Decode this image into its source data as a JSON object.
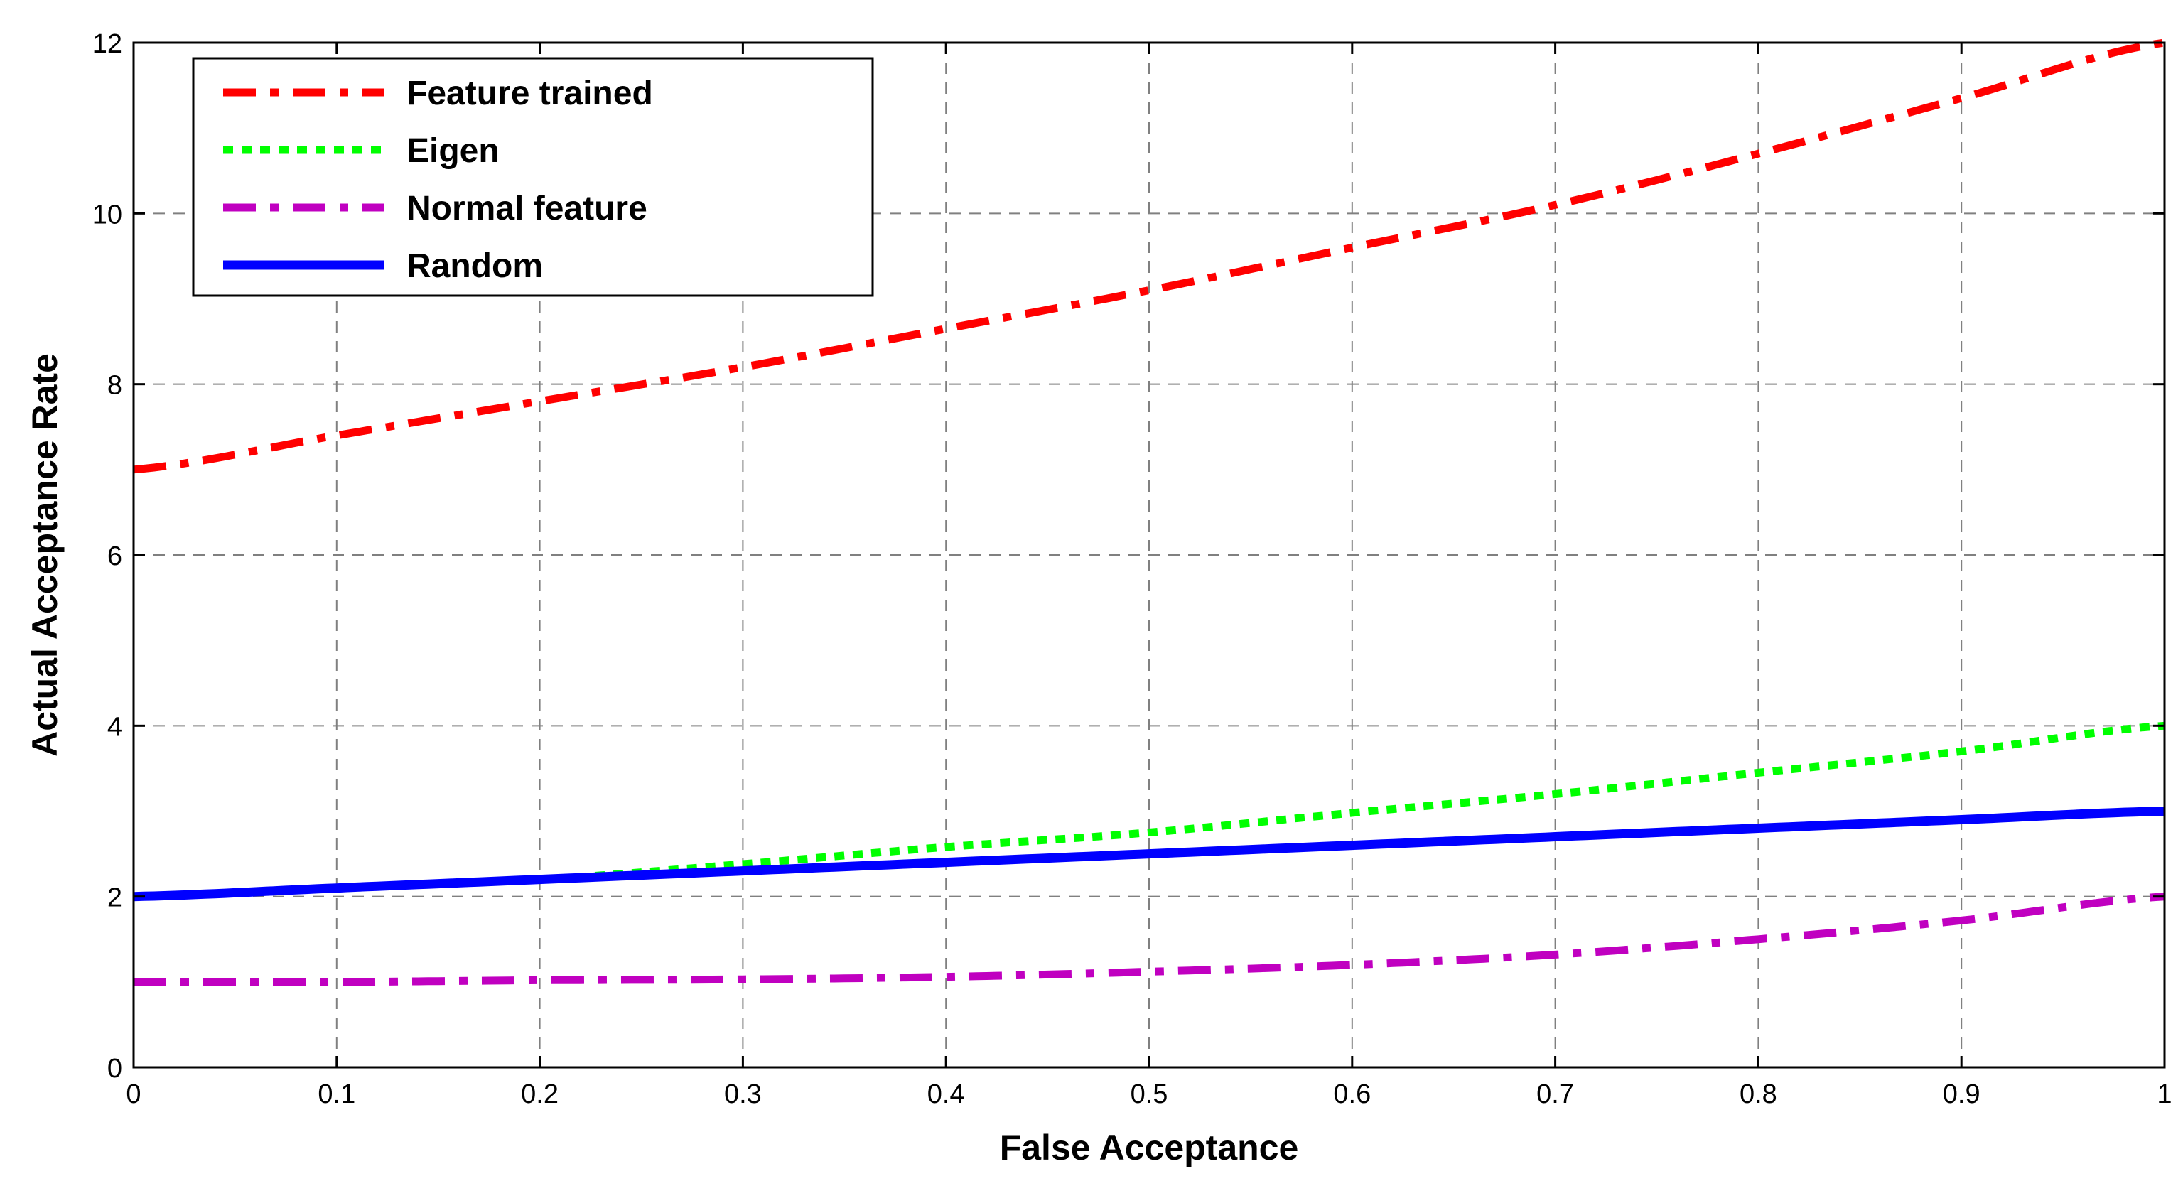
{
  "chart_data": {
    "type": "line",
    "xlabel": "False Acceptance",
    "ylabel": "Actual Acceptance Rate",
    "xlim": [
      0,
      1
    ],
    "ylim": [
      0,
      12
    ],
    "xticks": [
      0,
      0.1,
      0.2,
      0.3,
      0.4,
      0.5,
      0.6,
      0.7,
      0.8,
      0.9,
      1
    ],
    "xtick_labels": [
      "0",
      "0.1",
      "0.2",
      "0.3",
      "0.4",
      "0.5",
      "0.6",
      "0.7",
      "0.8",
      "0.9",
      "1"
    ],
    "yticks": [
      0,
      2,
      4,
      6,
      8,
      10,
      12
    ],
    "ytick_labels": [
      "0",
      "2",
      "4",
      "6",
      "8",
      "10",
      "12"
    ],
    "grid": true,
    "legend_position": "top-left",
    "x": [
      0,
      0.1,
      0.2,
      0.3,
      0.4,
      0.5,
      0.6,
      0.7,
      0.8,
      0.9,
      1
    ],
    "series": [
      {
        "name": "Feature trained",
        "color": "#ff0000",
        "style": "dash-dot",
        "values": [
          7.0,
          7.4,
          7.8,
          8.2,
          8.65,
          9.1,
          9.6,
          10.1,
          10.7,
          11.35,
          12.0
        ]
      },
      {
        "name": "Eigen",
        "color": "#00ff00",
        "style": "dotted",
        "values": [
          2.0,
          2.1,
          2.2,
          2.38,
          2.58,
          2.75,
          2.98,
          3.2,
          3.45,
          3.7,
          4.0
        ]
      },
      {
        "name": "Normal feature",
        "color": "#c000c0",
        "style": "dash-dot",
        "values": [
          1.0,
          1.0,
          1.02,
          1.03,
          1.06,
          1.12,
          1.2,
          1.32,
          1.5,
          1.72,
          2.0
        ]
      },
      {
        "name": "Random",
        "color": "#0000ff",
        "style": "solid",
        "values": [
          2.0,
          2.1,
          2.2,
          2.3,
          2.4,
          2.5,
          2.6,
          2.7,
          2.8,
          2.9,
          3.0
        ]
      }
    ]
  }
}
